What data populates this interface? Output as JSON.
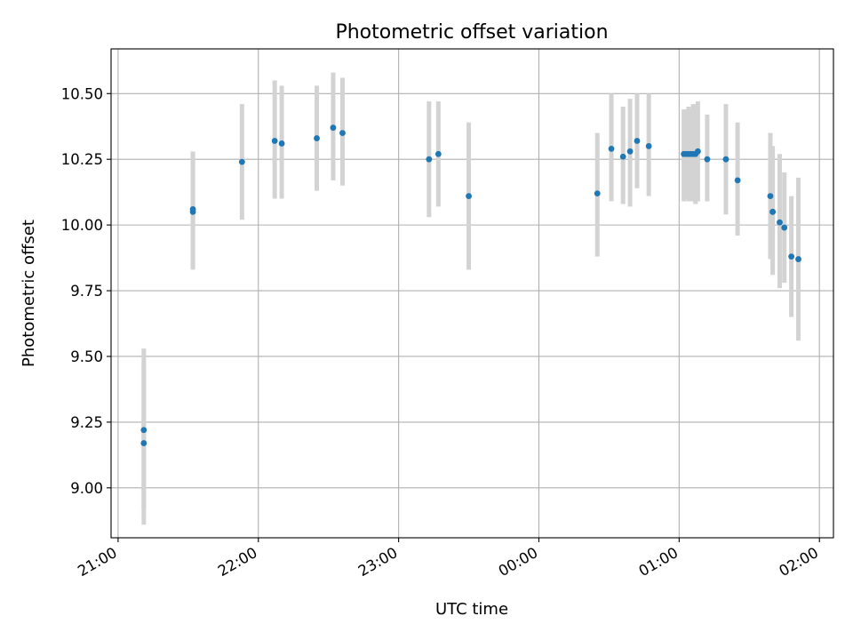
{
  "chart_data": {
    "type": "scatter",
    "title": "Photometric offset variation",
    "xlabel": "UTC time",
    "ylabel": "Photometric offset",
    "grid": true,
    "x_axis": {
      "type": "time",
      "min": "20:57",
      "max": "02:06",
      "ticks": [
        {
          "t": "21:00",
          "label": "21:00"
        },
        {
          "t": "22:00",
          "label": "22:00"
        },
        {
          "t": "23:00",
          "label": "23:00"
        },
        {
          "t": "00:00",
          "label": "00:00"
        },
        {
          "t": "01:00",
          "label": "01:00"
        },
        {
          "t": "02:00",
          "label": "02:00"
        }
      ]
    },
    "y_axis": {
      "min": 8.81,
      "max": 10.67,
      "ticks": [
        "9.00",
        "9.25",
        "9.50",
        "9.75",
        "10.00",
        "10.25",
        "10.50"
      ]
    },
    "series": [
      {
        "color": "#1f77b4",
        "errorbar_color": "#d3d3d3",
        "points": [
          {
            "x": "21:11",
            "y": 9.22,
            "yerr_low": 8.92,
            "yerr_high": 9.53
          },
          {
            "x": "21:11",
            "y": 9.17,
            "yerr_low": 8.86,
            "yerr_high": 9.47
          },
          {
            "x": "21:32",
            "y": 10.06,
            "yerr_low": 9.84,
            "yerr_high": 10.28
          },
          {
            "x": "21:32",
            "y": 10.05,
            "yerr_low": 9.83,
            "yerr_high": 10.27
          },
          {
            "x": "21:53",
            "y": 10.24,
            "yerr_low": 10.02,
            "yerr_high": 10.46
          },
          {
            "x": "22:07",
            "y": 10.32,
            "yerr_low": 10.1,
            "yerr_high": 10.55
          },
          {
            "x": "22:10",
            "y": 10.31,
            "yerr_low": 10.1,
            "yerr_high": 10.53
          },
          {
            "x": "22:25",
            "y": 10.33,
            "yerr_low": 10.13,
            "yerr_high": 10.53
          },
          {
            "x": "22:32",
            "y": 10.37,
            "yerr_low": 10.17,
            "yerr_high": 10.58
          },
          {
            "x": "22:36",
            "y": 10.35,
            "yerr_low": 10.15,
            "yerr_high": 10.56
          },
          {
            "x": "23:13",
            "y": 10.25,
            "yerr_low": 10.03,
            "yerr_high": 10.47
          },
          {
            "x": "23:17",
            "y": 10.27,
            "yerr_low": 10.07,
            "yerr_high": 10.47
          },
          {
            "x": "23:30",
            "y": 10.11,
            "yerr_low": 9.83,
            "yerr_high": 10.39
          },
          {
            "x": "00:25",
            "y": 10.12,
            "yerr_low": 9.88,
            "yerr_high": 10.35
          },
          {
            "x": "00:31",
            "y": 10.29,
            "yerr_low": 10.09,
            "yerr_high": 10.5
          },
          {
            "x": "00:36",
            "y": 10.26,
            "yerr_low": 10.08,
            "yerr_high": 10.45
          },
          {
            "x": "00:39",
            "y": 10.28,
            "yerr_low": 10.07,
            "yerr_high": 10.48
          },
          {
            "x": "00:42",
            "y": 10.32,
            "yerr_low": 10.14,
            "yerr_high": 10.5
          },
          {
            "x": "00:47",
            "y": 10.3,
            "yerr_low": 10.11,
            "yerr_high": 10.5
          },
          {
            "x": "01:02",
            "y": 10.27,
            "yerr_low": 10.09,
            "yerr_high": 10.44
          },
          {
            "x": "01:03",
            "y": 10.27,
            "yerr_low": 10.1,
            "yerr_high": 10.44
          },
          {
            "x": "01:04",
            "y": 10.27,
            "yerr_low": 10.09,
            "yerr_high": 10.45
          },
          {
            "x": "01:05",
            "y": 10.27,
            "yerr_low": 10.09,
            "yerr_high": 10.44
          },
          {
            "x": "01:06",
            "y": 10.27,
            "yerr_low": 10.09,
            "yerr_high": 10.46
          },
          {
            "x": "01:07",
            "y": 10.27,
            "yerr_low": 10.08,
            "yerr_high": 10.46
          },
          {
            "x": "01:08",
            "y": 10.28,
            "yerr_low": 10.09,
            "yerr_high": 10.47
          },
          {
            "x": "01:12",
            "y": 10.25,
            "yerr_low": 10.09,
            "yerr_high": 10.42
          },
          {
            "x": "01:20",
            "y": 10.25,
            "yerr_low": 10.04,
            "yerr_high": 10.46
          },
          {
            "x": "01:25",
            "y": 10.17,
            "yerr_low": 9.96,
            "yerr_high": 10.39
          },
          {
            "x": "01:39",
            "y": 10.11,
            "yerr_low": 9.87,
            "yerr_high": 10.35
          },
          {
            "x": "01:40",
            "y": 10.05,
            "yerr_low": 9.81,
            "yerr_high": 10.3
          },
          {
            "x": "01:40",
            "y": 10.05,
            "yerr_low": 9.84,
            "yerr_high": 10.27
          },
          {
            "x": "01:43",
            "y": 10.01,
            "yerr_low": 9.76,
            "yerr_high": 10.27
          },
          {
            "x": "01:45",
            "y": 9.99,
            "yerr_low": 9.78,
            "yerr_high": 10.2
          },
          {
            "x": "01:48",
            "y": 9.88,
            "yerr_low": 9.65,
            "yerr_high": 10.11
          },
          {
            "x": "01:51",
            "y": 9.87,
            "yerr_low": 9.56,
            "yerr_high": 10.18
          }
        ]
      }
    ]
  }
}
